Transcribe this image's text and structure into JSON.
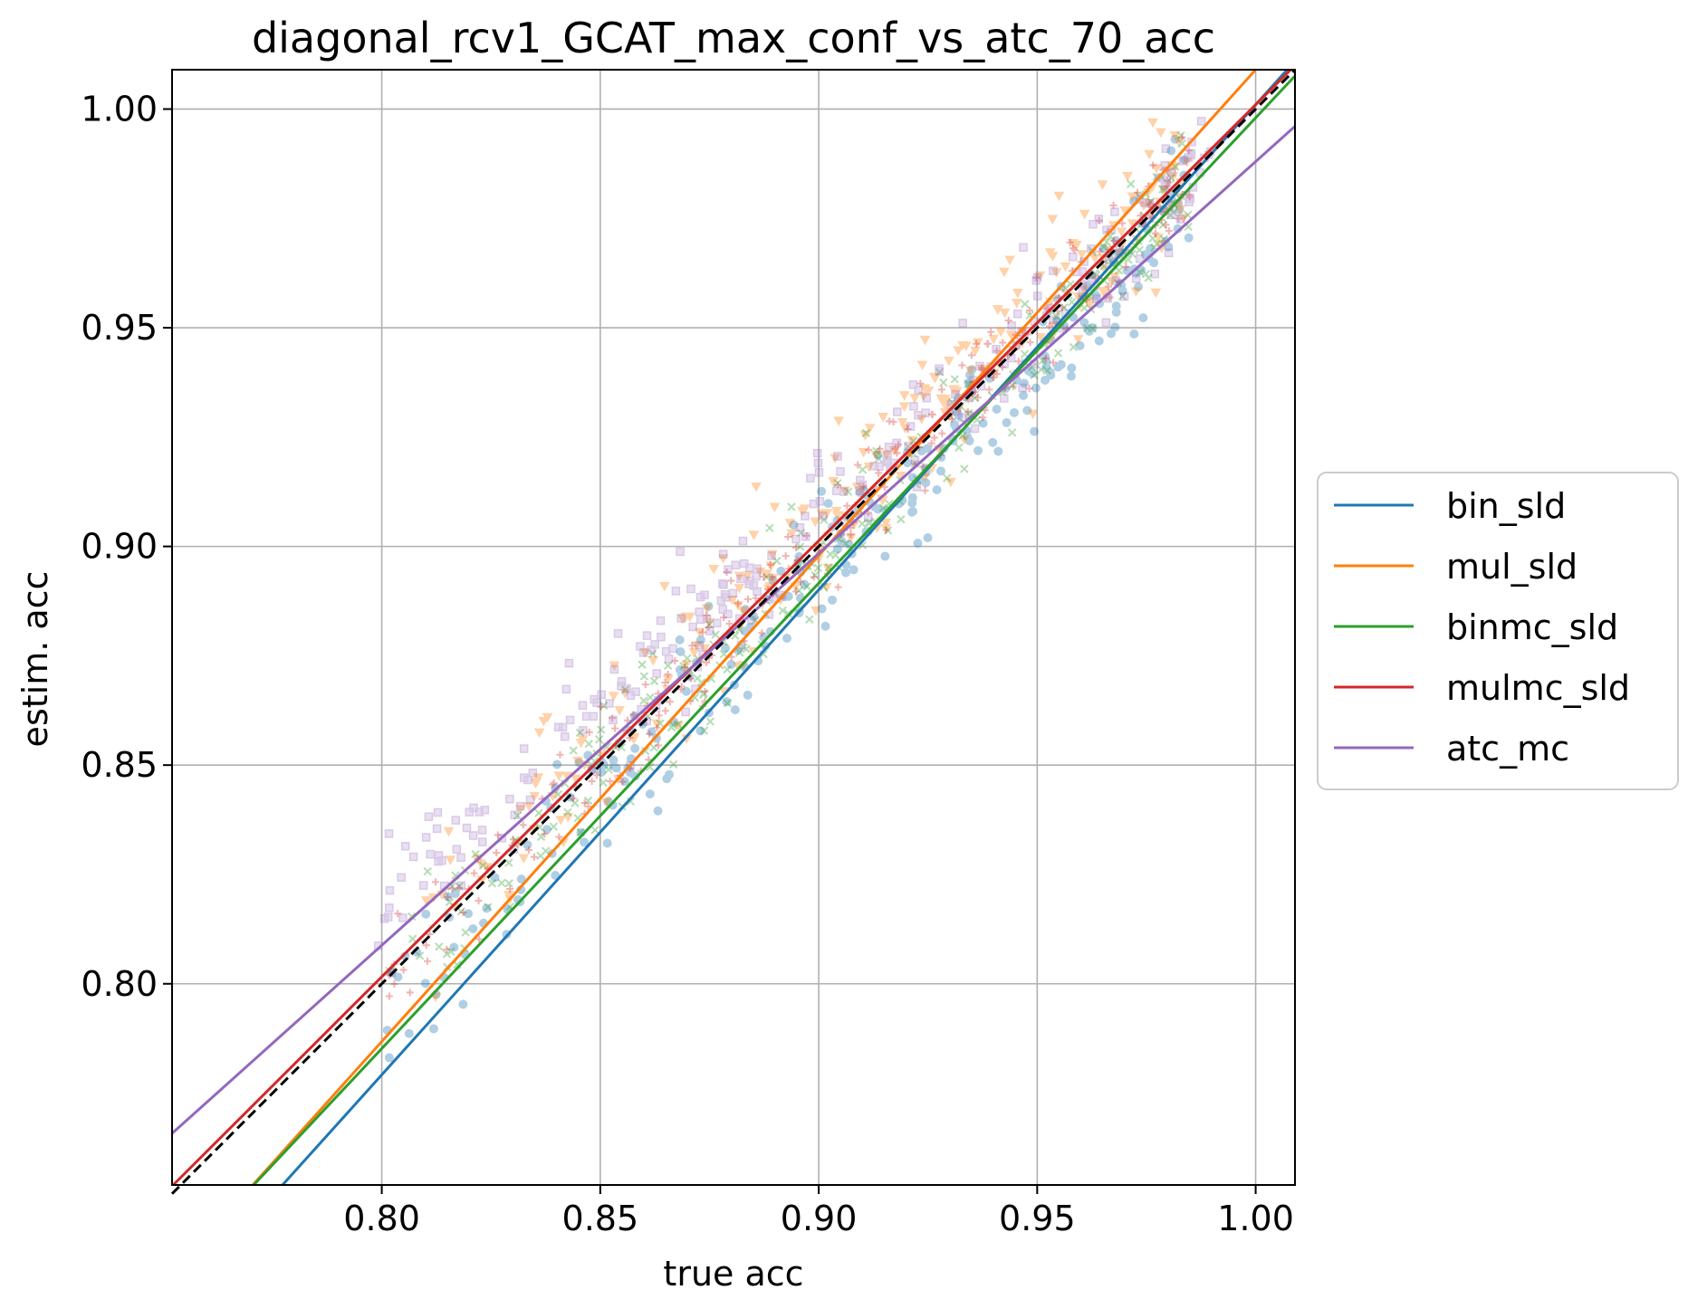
{
  "chart_data": {
    "type": "scatter",
    "title": "diagonal_rcv1_GCAT_max_conf_vs_atc_70_acc",
    "xlabel": "true acc",
    "ylabel": "estim. acc",
    "xlim": [
      0.752,
      1.009
    ],
    "ylim": [
      0.754,
      1.009
    ],
    "grid": true,
    "legend_position": "right-center",
    "x_ticks": [
      {
        "value": 0.8,
        "label": "0.80"
      },
      {
        "value": 0.85,
        "label": "0.85"
      },
      {
        "value": 0.9,
        "label": "0.90"
      },
      {
        "value": 0.95,
        "label": "0.95"
      },
      {
        "value": 1.0,
        "label": "1.00"
      }
    ],
    "y_ticks": [
      {
        "value": 0.8,
        "label": "0.80"
      },
      {
        "value": 0.85,
        "label": "0.85"
      },
      {
        "value": 0.9,
        "label": "0.90"
      },
      {
        "value": 0.95,
        "label": "0.95"
      },
      {
        "value": 1.0,
        "label": "1.00"
      }
    ],
    "diagonal_reference": {
      "from": [
        0.752,
        0.752
      ],
      "to": [
        1.009,
        1.009
      ],
      "color": "#000000",
      "dashed": true
    },
    "series": [
      {
        "name": "bin_sld",
        "color": "#1f77b4",
        "marker": "circle",
        "fit_line": {
          "slope": 1.109,
          "intercept": -0.108
        },
        "x_range": [
          0.8,
          0.985
        ],
        "scatter_offset": -0.006,
        "scatter_spread": 0.011
      },
      {
        "name": "mul_sld",
        "color": "#ff7f0e",
        "marker": "triangle-down",
        "fit_line": {
          "slope": 1.111,
          "intercept": -0.102
        },
        "x_range": [
          0.81,
          0.985
        ],
        "scatter_offset": 0.004,
        "scatter_spread": 0.013
      },
      {
        "name": "binmc_sld",
        "color": "#2ca02c",
        "marker": "cross",
        "fit_line": {
          "slope": 1.064,
          "intercept": -0.066
        },
        "x_range": [
          0.8,
          0.985
        ],
        "scatter_offset": -0.002,
        "scatter_spread": 0.01
      },
      {
        "name": "mulmc_sld",
        "color": "#d62728",
        "marker": "plus",
        "fit_line": {
          "slope": 0.997,
          "intercept": 0.004
        },
        "x_range": [
          0.8,
          0.985
        ],
        "scatter_offset": 0.001,
        "scatter_spread": 0.009
      },
      {
        "name": "atc_mc",
        "color": "#9467bd",
        "marker": "square",
        "fit_line": {
          "slope": 0.896,
          "intercept": 0.092
        },
        "x_range": [
          0.797,
          0.99
        ],
        "scatter_offset": 0.004,
        "scatter_spread": 0.01
      }
    ]
  }
}
